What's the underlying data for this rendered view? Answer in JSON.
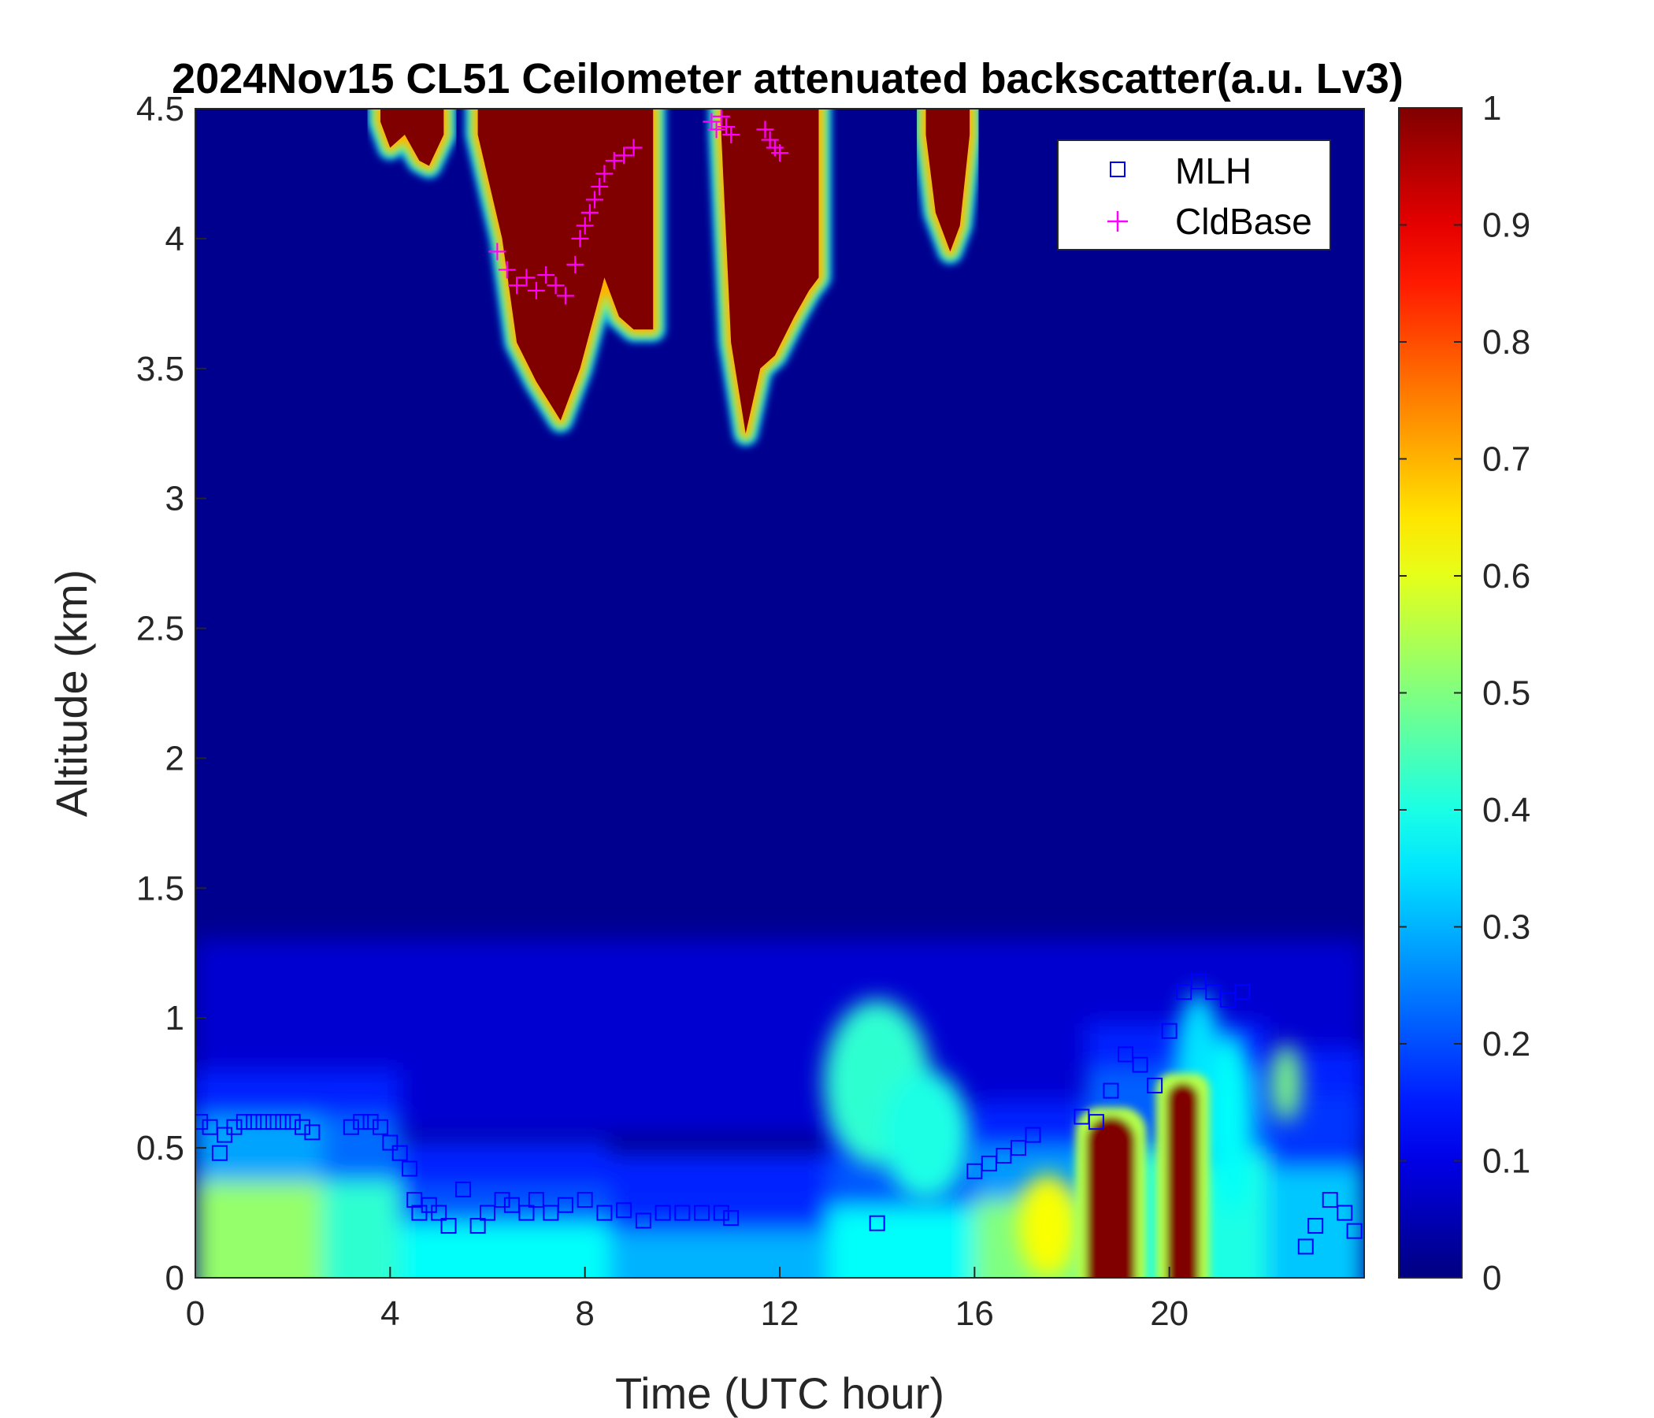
{
  "chart_data": {
    "type": "heatmap",
    "title": "2024Nov15 CL51 Ceilometer attenuated backscatter(a.u. Lv3)",
    "xlabel": "Time (UTC hour)",
    "ylabel": "Altitude (km)",
    "xlim": [
      0,
      24
    ],
    "ylim": [
      0,
      4.5
    ],
    "x_ticks": [
      0,
      4,
      8,
      12,
      16,
      20
    ],
    "x_tick_labels": [
      "0",
      "4",
      "8",
      "12",
      "16",
      "20"
    ],
    "y_ticks": [
      0,
      0.5,
      1,
      1.5,
      2,
      2.5,
      3,
      3.5,
      4,
      4.5
    ],
    "y_tick_labels": [
      "0",
      "0.5",
      "1",
      "1.5",
      "2",
      "2.5",
      "3",
      "3.5",
      "4",
      "4.5"
    ],
    "colorbar": {
      "colormap": "jet",
      "range": [
        0,
        1
      ],
      "ticks": [
        0,
        0.1,
        0.2,
        0.3,
        0.4,
        0.5,
        0.6,
        0.7,
        0.8,
        0.9,
        1
      ],
      "tick_labels": [
        "0",
        "0.1",
        "0.2",
        "0.3",
        "0.4",
        "0.5",
        "0.6",
        "0.7",
        "0.8",
        "0.9",
        "1"
      ]
    },
    "legend": {
      "placement": "top-right",
      "entries": [
        {
          "name": "MLH",
          "marker": "square",
          "color": "#0000ff"
        },
        {
          "name": "CldBase",
          "marker": "plus",
          "color": "#ff00ff"
        }
      ]
    },
    "surface_layer": [
      {
        "t0": 0,
        "t1": 2.6,
        "top": 0.62,
        "value": 0.52
      },
      {
        "t0": 2.6,
        "t1": 4.2,
        "top": 0.62,
        "value": 0.42
      },
      {
        "t0": 4.2,
        "t1": 8.5,
        "top": 0.35,
        "value": 0.38
      },
      {
        "t0": 8.5,
        "t1": 13.0,
        "top": 0.3,
        "value": 0.3
      },
      {
        "t0": 13.0,
        "t1": 16.0,
        "top": 0.45,
        "value": 0.38
      },
      {
        "t0": 16.0,
        "t1": 18.3,
        "top": 0.5,
        "value": 0.5
      },
      {
        "t0": 18.3,
        "t1": 22.0,
        "top": 0.8,
        "value": 0.4
      },
      {
        "t0": 22.0,
        "t1": 24.0,
        "top": 0.7,
        "value": 0.32
      }
    ],
    "aerosol_features": [
      {
        "t": 14.0,
        "alt": 0.75,
        "rt": 1.1,
        "ralt": 0.32,
        "value": 0.42
      },
      {
        "t": 15.0,
        "alt": 0.55,
        "rt": 0.9,
        "ralt": 0.25,
        "value": 0.4
      },
      {
        "t": 17.5,
        "alt": 0.2,
        "rt": 0.6,
        "ralt": 0.2,
        "value": 0.62
      },
      {
        "t": 20.6,
        "alt": 0.75,
        "rt": 0.5,
        "ralt": 0.35,
        "value": 0.35
      },
      {
        "t": 21.3,
        "alt": 0.6,
        "rt": 0.4,
        "ralt": 0.35,
        "value": 0.38
      },
      {
        "t": 22.4,
        "alt": 0.75,
        "rt": 0.3,
        "ralt": 0.15,
        "value": 0.5
      }
    ],
    "strong_layers": [
      {
        "t0": 18.3,
        "t1": 19.3,
        "alt0": 0,
        "alt1": 0.62,
        "value": 1
      },
      {
        "t0": 19.95,
        "t1": 20.6,
        "alt0": 0,
        "alt1": 0.75,
        "value": 1
      }
    ],
    "cloud_bands": [
      {
        "t0": 3.8,
        "t1": 5.1,
        "base": [
          [
            3.8,
            4.45
          ],
          [
            4.0,
            4.35
          ],
          [
            4.3,
            4.4
          ],
          [
            4.6,
            4.3
          ],
          [
            4.8,
            4.28
          ],
          [
            5.1,
            4.4
          ]
        ]
      },
      {
        "t0": 5.8,
        "t1": 9.4,
        "base": [
          [
            5.8,
            4.4
          ],
          [
            6.3,
            4.0
          ],
          [
            6.6,
            3.6
          ],
          [
            7.0,
            3.45
          ],
          [
            7.5,
            3.3
          ],
          [
            7.9,
            3.5
          ],
          [
            8.4,
            3.85
          ],
          [
            8.7,
            3.7
          ],
          [
            9.0,
            3.65
          ],
          [
            9.4,
            3.65
          ]
        ]
      },
      {
        "t0": 10.8,
        "t1": 12.8,
        "base": [
          [
            10.8,
            4.4
          ],
          [
            11.0,
            3.6
          ],
          [
            11.3,
            3.25
          ],
          [
            11.6,
            3.5
          ],
          [
            11.9,
            3.55
          ],
          [
            12.3,
            3.7
          ],
          [
            12.6,
            3.8
          ],
          [
            12.8,
            3.85
          ]
        ]
      },
      {
        "t0": 15.0,
        "t1": 15.9,
        "base": [
          [
            15.0,
            4.4
          ],
          [
            15.2,
            4.1
          ],
          [
            15.5,
            3.95
          ],
          [
            15.7,
            4.05
          ],
          [
            15.9,
            4.4
          ]
        ]
      }
    ],
    "series": [
      {
        "name": "MLH",
        "marker": "square",
        "x": [
          0.1,
          0.3,
          0.5,
          0.6,
          0.8,
          1.0,
          1.2,
          1.4,
          1.6,
          1.8,
          2.0,
          2.2,
          2.4,
          3.2,
          3.4,
          3.6,
          3.8,
          4.0,
          4.2,
          4.4,
          4.5,
          4.6,
          4.8,
          5.0,
          5.2,
          5.5,
          5.8,
          6.0,
          6.3,
          6.5,
          6.8,
          7.0,
          7.3,
          7.6,
          8.0,
          8.4,
          8.8,
          9.2,
          9.6,
          10.0,
          10.4,
          10.8,
          11.0,
          14.0,
          16.0,
          16.3,
          16.6,
          16.9,
          17.2,
          18.2,
          18.5,
          18.8,
          19.1,
          19.4,
          19.7,
          20.0,
          20.3,
          20.6,
          20.9,
          21.2,
          21.5,
          22.8,
          23.0,
          23.3,
          23.6,
          23.8
        ],
        "y": [
          0.6,
          0.58,
          0.48,
          0.55,
          0.58,
          0.6,
          0.6,
          0.6,
          0.6,
          0.6,
          0.6,
          0.58,
          0.56,
          0.58,
          0.6,
          0.6,
          0.58,
          0.52,
          0.48,
          0.42,
          0.3,
          0.25,
          0.28,
          0.25,
          0.2,
          0.34,
          0.2,
          0.25,
          0.3,
          0.28,
          0.25,
          0.3,
          0.25,
          0.28,
          0.3,
          0.25,
          0.26,
          0.22,
          0.25,
          0.25,
          0.25,
          0.25,
          0.23,
          0.21,
          0.41,
          0.44,
          0.47,
          0.5,
          0.55,
          0.62,
          0.6,
          0.72,
          0.86,
          0.82,
          0.74,
          0.95,
          1.1,
          1.14,
          1.1,
          1.07,
          1.1,
          0.12,
          0.2,
          0.3,
          0.25,
          0.18
        ]
      },
      {
        "name": "CldBase",
        "marker": "plus",
        "x": [
          6.2,
          6.4,
          6.6,
          6.8,
          7.0,
          7.2,
          7.4,
          7.6,
          7.8,
          7.9,
          8.0,
          8.1,
          8.2,
          8.3,
          8.4,
          8.6,
          8.8,
          9.0,
          10.6,
          10.7,
          10.8,
          10.9,
          11.0,
          11.7,
          11.8,
          11.9,
          12.0
        ],
        "y": [
          3.95,
          3.88,
          3.82,
          3.85,
          3.8,
          3.86,
          3.82,
          3.78,
          3.9,
          4.0,
          4.05,
          4.1,
          4.15,
          4.2,
          4.25,
          4.3,
          4.32,
          4.35,
          4.45,
          4.42,
          4.47,
          4.43,
          4.4,
          4.42,
          4.38,
          4.35,
          4.33
        ]
      }
    ]
  }
}
